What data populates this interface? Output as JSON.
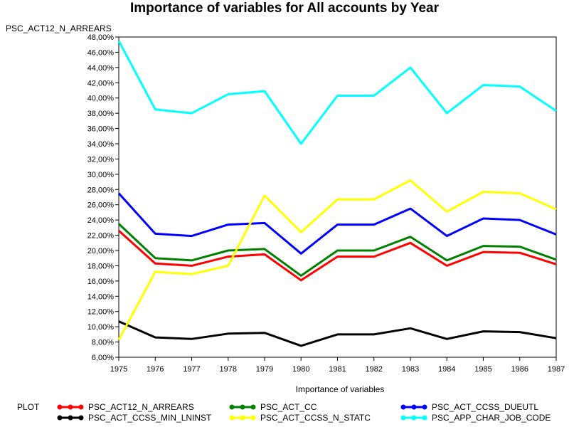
{
  "chart_data": {
    "type": "line",
    "title": "Importance of variables for All accounts by Year",
    "ylabel": "PSC_ACT12_N_ARREARS",
    "xlabel": "Importance of variables",
    "x": [
      1975,
      1976,
      1977,
      1978,
      1979,
      1980,
      1981,
      1982,
      1983,
      1984,
      1985,
      1986,
      1987
    ],
    "xlim": [
      1975,
      1987
    ],
    "ylim": [
      6,
      48
    ],
    "ytick_step": 2,
    "ytick_format_suffix": "%",
    "grid": false,
    "legend_title": "PLOT",
    "legend_placement": "bottom",
    "series": [
      {
        "name": "PSC_ACT12_N_ARREARS",
        "color": "#ff0000",
        "values": [
          22.6,
          18.3,
          18.0,
          19.2,
          19.5,
          16.1,
          19.2,
          19.2,
          21.0,
          18.0,
          19.8,
          19.7,
          18.2
        ]
      },
      {
        "name": "PSC_ACT_CC",
        "color": "#008000",
        "values": [
          23.5,
          19.0,
          18.7,
          20.0,
          20.2,
          16.7,
          20.0,
          20.0,
          21.8,
          18.7,
          20.6,
          20.5,
          18.8
        ]
      },
      {
        "name": "PSC_ACT_CCSS_DUEUTL",
        "color": "#0000ff",
        "values": [
          27.5,
          22.2,
          21.9,
          23.4,
          23.6,
          19.6,
          23.4,
          23.4,
          25.5,
          21.9,
          24.2,
          24.0,
          22.1
        ]
      },
      {
        "name": "PSC_ACT_CCSS_MIN_LNINST",
        "color": "#000000",
        "values": [
          10.7,
          8.6,
          8.4,
          9.1,
          9.2,
          7.5,
          9.0,
          9.0,
          9.8,
          8.4,
          9.4,
          9.3,
          8.5
        ]
      },
      {
        "name": "PSC_ACT_CCSS_N_STATC",
        "color": "#ffff00",
        "values": [
          8.3,
          17.2,
          16.9,
          18.0,
          27.2,
          22.4,
          26.7,
          26.7,
          29.2,
          25.1,
          27.7,
          27.5,
          25.4
        ]
      },
      {
        "name": "PSC_APP_CHAR_JOB_CODE",
        "color": "#00ffff",
        "values": [
          47.5,
          38.5,
          38.0,
          40.5,
          40.9,
          34.0,
          40.3,
          40.3,
          44.0,
          38.0,
          41.7,
          41.5,
          38.3
        ]
      }
    ]
  }
}
